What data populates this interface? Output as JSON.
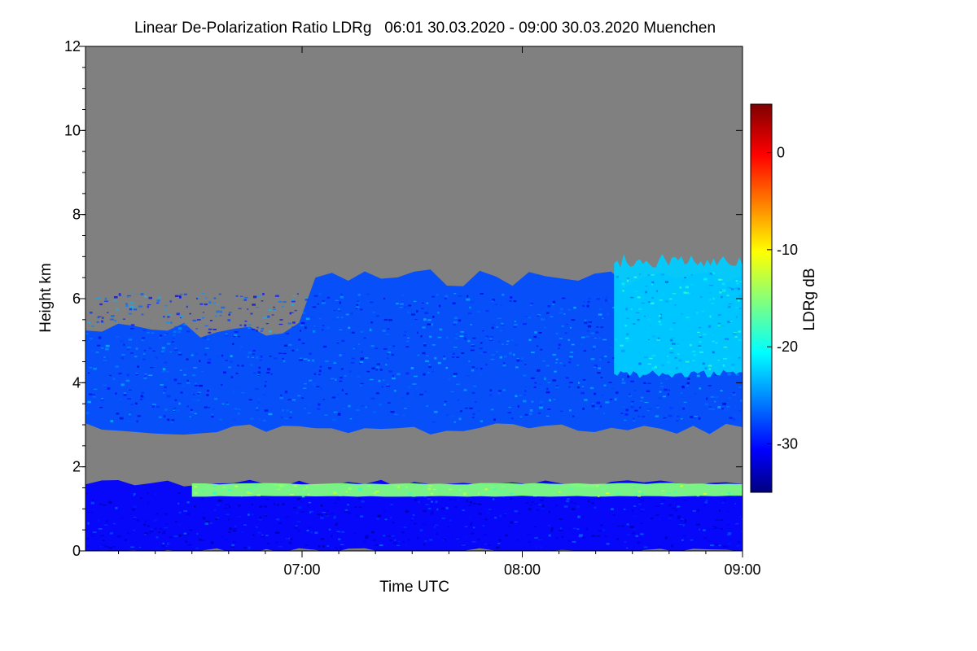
{
  "chart_data": {
    "type": "heatmap",
    "title": "Linear De-Polarization Ratio LDRg   06:01 30.03.2020 - 09:00 30.03.2020 Muenchen",
    "xlabel": "Time UTC",
    "ylabel": "Height km",
    "x_range": [
      "06:01",
      "09:00"
    ],
    "x_ticks": [
      {
        "label": "07:00",
        "value": "07:00"
      },
      {
        "label": "08:00",
        "value": "08:00"
      },
      {
        "label": "09:00",
        "value": "09:00"
      }
    ],
    "y_range": [
      0,
      12
    ],
    "y_ticks": [
      0,
      2,
      4,
      6,
      8,
      10,
      12
    ],
    "colorbar": {
      "label": "LDRg dB",
      "range": [
        -35,
        5
      ],
      "ticks": [
        0,
        -10,
        -20,
        -30
      ],
      "colormap": "jet",
      "background_color": "#808080"
    },
    "features": [
      {
        "name": "mid-level cloud",
        "time_start": "06:01",
        "time_end": "09:00",
        "height_bottom_km": 2.9,
        "height_top_km": 6.5,
        "ldr_db_typical": -27
      },
      {
        "name": "cirrus plume",
        "time_start": "08:25",
        "time_end": "09:00",
        "height_bottom_km": 4.2,
        "height_top_km": 6.9,
        "ldr_db_typical": -22
      },
      {
        "name": "boundary layer aerosol",
        "time_start": "06:01",
        "time_end": "09:00",
        "height_bottom_km": 0.0,
        "height_top_km": 1.6,
        "ldr_db_typical": -30
      },
      {
        "name": "layer top noisy band",
        "time_start": "06:30",
        "time_end": "09:00",
        "height_bottom_km": 1.3,
        "height_top_km": 1.6,
        "ldr_db_typical": -15
      }
    ]
  }
}
